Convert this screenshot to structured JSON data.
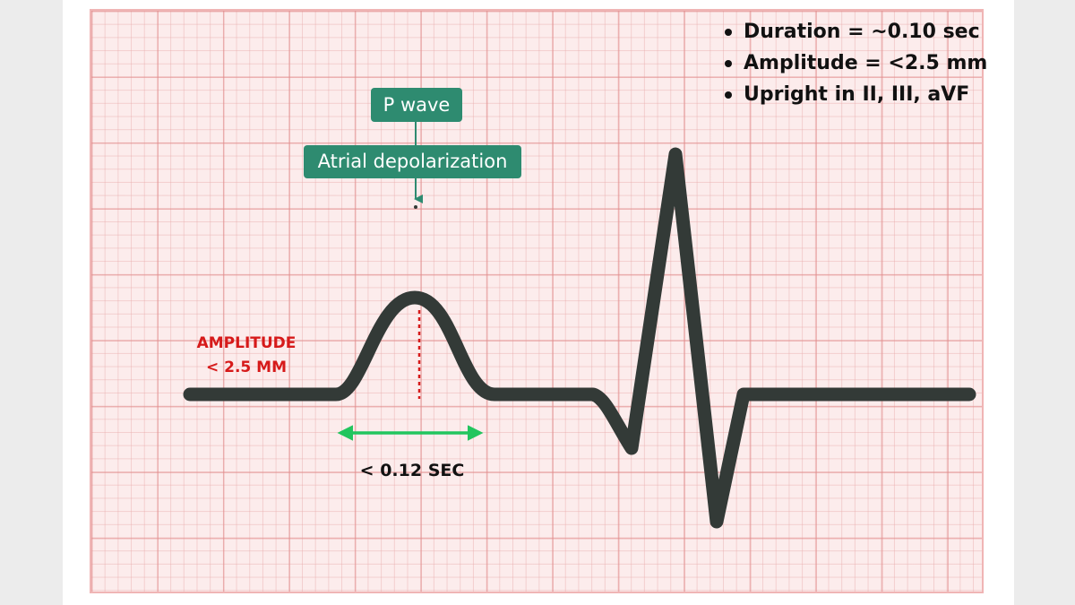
{
  "info_points": [
    "Duration = ~0.10 sec",
    "Amplitude = <2.5 mm",
    "Upright in II, III, aVF"
  ],
  "labels": {
    "p_wave": "P wave",
    "atrial": "Atrial depolarization",
    "amplitude_line1": "AMPLITUDE",
    "amplitude_line2": "< 2.5 MM",
    "duration": "< 0.12 SEC"
  },
  "colors": {
    "trace": "#333a37",
    "tag": "#2e8b70",
    "amplitude": "#d61a1a",
    "duration_arrow": "#22c55e",
    "grid": "#e8a0a0"
  }
}
